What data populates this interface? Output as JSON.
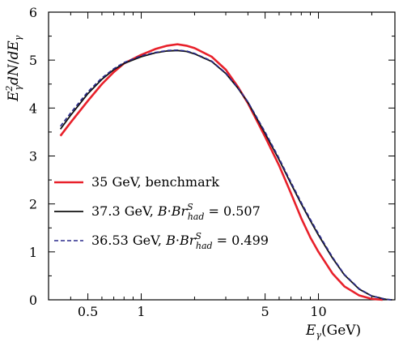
{
  "chart_data": {
    "type": "line",
    "xscale": "log",
    "xlim": [
      0.3,
      27
    ],
    "ylim": [
      0,
      6
    ],
    "grid": false,
    "legend_position": "bottom-left",
    "xlabel": "E_γ(GeV)",
    "ylabel": "E_γ^2 dN/dE_γ",
    "xticks": [
      {
        "value": 0.5,
        "label": "0.5"
      },
      {
        "value": 1,
        "label": "1"
      },
      {
        "value": 5,
        "label": "5"
      },
      {
        "value": 10,
        "label": "10"
      }
    ],
    "yticks": [
      {
        "value": 0,
        "label": "0"
      },
      {
        "value": 1,
        "label": "1"
      },
      {
        "value": 2,
        "label": "2"
      },
      {
        "value": 3,
        "label": "3"
      },
      {
        "value": 4,
        "label": "4"
      },
      {
        "value": 5,
        "label": "5"
      },
      {
        "value": 6,
        "label": "6"
      }
    ],
    "series": [
      {
        "name": "35 GeV, benchmark",
        "color": "#e8202a",
        "dash": "solid",
        "points": [
          [
            0.35,
            3.42
          ],
          [
            0.4,
            3.7
          ],
          [
            0.5,
            4.15
          ],
          [
            0.6,
            4.5
          ],
          [
            0.7,
            4.75
          ],
          [
            0.8,
            4.93
          ],
          [
            1.0,
            5.11
          ],
          [
            1.2,
            5.23
          ],
          [
            1.4,
            5.3
          ],
          [
            1.6,
            5.33
          ],
          [
            1.8,
            5.3
          ],
          [
            2.0,
            5.25
          ],
          [
            2.5,
            5.07
          ],
          [
            3.0,
            4.8
          ],
          [
            3.5,
            4.45
          ],
          [
            4.0,
            4.1
          ],
          [
            5.0,
            3.4
          ],
          [
            6.0,
            2.8
          ],
          [
            7.0,
            2.22
          ],
          [
            8.0,
            1.7
          ],
          [
            9.0,
            1.3
          ],
          [
            10.0,
            1.0
          ],
          [
            12.0,
            0.55
          ],
          [
            14.0,
            0.28
          ],
          [
            17.0,
            0.09
          ],
          [
            20.0,
            0.02
          ],
          [
            23.0,
            0.0
          ]
        ]
      },
      {
        "name": "37.3 GeV, B·Br_had^S = 0.507",
        "color": "#111111",
        "dash": "solid",
        "points": [
          [
            0.35,
            3.56
          ],
          [
            0.4,
            3.85
          ],
          [
            0.5,
            4.3
          ],
          [
            0.6,
            4.6
          ],
          [
            0.7,
            4.8
          ],
          [
            0.8,
            4.93
          ],
          [
            1.0,
            5.07
          ],
          [
            1.2,
            5.15
          ],
          [
            1.4,
            5.19
          ],
          [
            1.6,
            5.2
          ],
          [
            1.8,
            5.18
          ],
          [
            2.0,
            5.13
          ],
          [
            2.5,
            4.97
          ],
          [
            3.0,
            4.72
          ],
          [
            3.5,
            4.42
          ],
          [
            4.0,
            4.12
          ],
          [
            5.0,
            3.47
          ],
          [
            6.0,
            2.92
          ],
          [
            7.0,
            2.42
          ],
          [
            8.0,
            2.0
          ],
          [
            9.0,
            1.65
          ],
          [
            10.0,
            1.35
          ],
          [
            12.0,
            0.87
          ],
          [
            14.0,
            0.52
          ],
          [
            17.0,
            0.22
          ],
          [
            20.0,
            0.08
          ],
          [
            24.0,
            0.01
          ],
          [
            26.0,
            0.0
          ]
        ]
      },
      {
        "name": "36.53 GeV, B·Br_had^S = 0.499",
        "color": "#2a2a8c",
        "dash": "dashed",
        "points": [
          [
            0.35,
            3.62
          ],
          [
            0.4,
            3.9
          ],
          [
            0.5,
            4.34
          ],
          [
            0.6,
            4.63
          ],
          [
            0.7,
            4.82
          ],
          [
            0.8,
            4.95
          ],
          [
            1.0,
            5.09
          ],
          [
            1.2,
            5.16
          ],
          [
            1.4,
            5.2
          ],
          [
            1.6,
            5.21
          ],
          [
            1.8,
            5.19
          ],
          [
            2.0,
            5.14
          ],
          [
            2.5,
            4.98
          ],
          [
            3.0,
            4.73
          ],
          [
            3.5,
            4.43
          ],
          [
            4.0,
            4.13
          ],
          [
            5.0,
            3.5
          ],
          [
            6.0,
            2.95
          ],
          [
            7.0,
            2.45
          ],
          [
            8.0,
            2.03
          ],
          [
            9.0,
            1.68
          ],
          [
            10.0,
            1.38
          ],
          [
            12.0,
            0.89
          ],
          [
            14.0,
            0.53
          ],
          [
            17.0,
            0.23
          ],
          [
            20.0,
            0.08
          ],
          [
            24.0,
            0.01
          ],
          [
            26.0,
            0.0
          ]
        ]
      }
    ]
  }
}
